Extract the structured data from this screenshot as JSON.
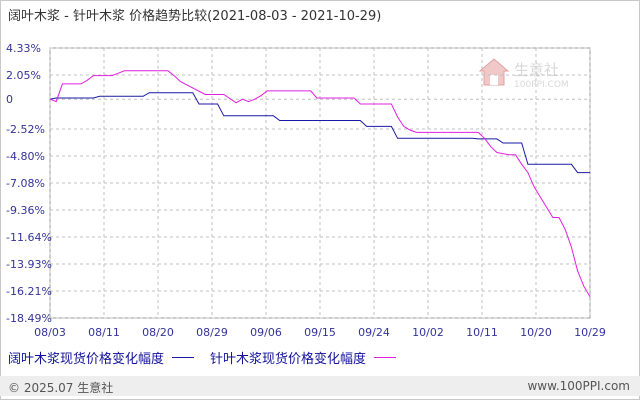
{
  "title": "阔叶木浆 - 针叶木浆 价格趋势比较(2021-08-03 - 2021-10-29)",
  "watermark": {
    "name": "生意社",
    "url": "100PPI.COM"
  },
  "footer": {
    "copyright": "© 2025.07 生意社",
    "site": "www.100PPI.com"
  },
  "colors": {
    "series1": "#1a1aa6",
    "series2": "#e020e0",
    "grid": "#c0c0c0",
    "axis": "#999999",
    "tick_text": "#333399"
  },
  "chart_data": {
    "type": "line",
    "title": "阔叶木浆 - 针叶木浆 价格趋势比较(2021-08-03 - 2021-10-29)",
    "xlabel": "",
    "ylabel": "",
    "x_ticks": [
      "08/03",
      "08/11",
      "08/20",
      "08/29",
      "09/06",
      "09/15",
      "09/24",
      "10/02",
      "10/11",
      "10/20",
      "10/29"
    ],
    "y_ticks": [
      "4.33%",
      "2.05%",
      "0",
      "-2.52%",
      "-4.80%",
      "-7.08%",
      "-9.36%",
      "-11.64%",
      "-13.93%",
      "-16.21%",
      "-18.49%"
    ],
    "y_tick_values": [
      4.33,
      2.05,
      0,
      -2.52,
      -4.8,
      -7.08,
      -9.36,
      -11.64,
      -13.93,
      -16.21,
      -18.49
    ],
    "ylim": [
      -18.49,
      4.33
    ],
    "xlim": [
      "2021-08-03",
      "2021-10-29"
    ],
    "grid": true,
    "legend_position": "bottom-left",
    "series": [
      {
        "name": "阔叶木浆现货价格变化幅度",
        "x": [
          "2021-08-03",
          "2021-08-04",
          "2021-08-10",
          "2021-08-11",
          "2021-08-18",
          "2021-08-19",
          "2021-08-26",
          "2021-08-27",
          "2021-08-30",
          "2021-08-31",
          "2021-09-08",
          "2021-09-09",
          "2021-09-22",
          "2021-09-23",
          "2021-09-27",
          "2021-09-28",
          "2021-10-10",
          "2021-10-11",
          "2021-10-14",
          "2021-10-15",
          "2021-10-18",
          "2021-10-19",
          "2021-10-26",
          "2021-10-27",
          "2021-10-29"
        ],
        "values": [
          0,
          0.1,
          0.1,
          0.25,
          0.25,
          0.55,
          0.55,
          -0.4,
          -0.4,
          -1.4,
          -1.4,
          -1.8,
          -1.8,
          -2.3,
          -2.3,
          -3.3,
          -3.3,
          -3.35,
          -3.35,
          -3.7,
          -3.7,
          -5.5,
          -5.5,
          -6.2,
          -6.2
        ]
      },
      {
        "name": "针叶木浆现货价格变化幅度",
        "x": [
          "2021-08-03",
          "2021-08-04",
          "2021-08-05",
          "2021-08-08",
          "2021-08-09",
          "2021-08-10",
          "2021-08-13",
          "2021-08-14",
          "2021-08-15",
          "2021-08-22",
          "2021-08-23",
          "2021-08-24",
          "2021-08-28",
          "2021-08-29",
          "2021-08-31",
          "2021-09-02",
          "2021-09-03",
          "2021-09-04",
          "2021-09-05",
          "2021-09-06",
          "2021-09-07",
          "2021-09-14",
          "2021-09-15",
          "2021-09-21",
          "2021-09-22",
          "2021-09-27",
          "2021-09-28",
          "2021-09-29",
          "2021-09-30",
          "2021-10-01",
          "2021-10-02",
          "2021-10-11",
          "2021-10-12",
          "2021-10-13",
          "2021-10-14",
          "2021-10-16",
          "2021-10-17",
          "2021-10-18",
          "2021-10-19",
          "2021-10-20",
          "2021-10-23",
          "2021-10-24",
          "2021-10-25",
          "2021-10-26",
          "2021-10-27",
          "2021-10-28",
          "2021-10-29"
        ],
        "values": [
          0,
          -0.2,
          1.3,
          1.3,
          1.6,
          2.0,
          2.0,
          2.2,
          2.4,
          2.4,
          2.0,
          1.5,
          0.4,
          0.4,
          0.4,
          -0.3,
          0,
          -0.2,
          0,
          0.3,
          0.7,
          0.7,
          0.1,
          0.1,
          -0.4,
          -0.4,
          -1.5,
          -2.3,
          -2.6,
          -2.8,
          -2.8,
          -2.8,
          -3.3,
          -4.0,
          -4.5,
          -4.7,
          -4.7,
          -5.5,
          -6.2,
          -7.4,
          -10.0,
          -10.0,
          -11.0,
          -12.5,
          -14.5,
          -15.8,
          -16.7
        ]
      }
    ]
  }
}
